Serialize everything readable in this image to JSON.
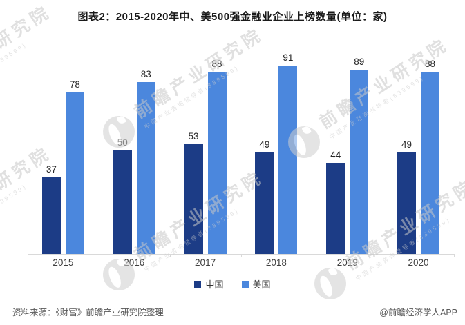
{
  "chart_data": {
    "type": "bar",
    "title": "图表2：2015-2020年中、美500强金融业企业上榜数量(单位：家)",
    "categories": [
      "2015",
      "2016",
      "2017",
      "2018",
      "2019",
      "2020"
    ],
    "series": [
      {
        "name": "中国",
        "color": "#1c3c86",
        "values": [
          37,
          50,
          53,
          49,
          44,
          49
        ]
      },
      {
        "name": "美国",
        "color": "#4b87dd",
        "values": [
          78,
          83,
          88,
          91,
          89,
          88
        ]
      }
    ],
    "xlabel": "",
    "ylabel": "",
    "ylim": [
      0,
      100
    ],
    "grid": false,
    "value_labels": true,
    "legend_position": "bottom",
    "axis_line_color": "#d9d9d9"
  },
  "footer": {
    "source": "资料来源：《财富》前瞻产业研究院整理",
    "credit": "@前瞻经济学人APP"
  },
  "watermark": {
    "main": "前瞻产业研究院",
    "sub": "中国产业咨询领导者(839599)"
  }
}
